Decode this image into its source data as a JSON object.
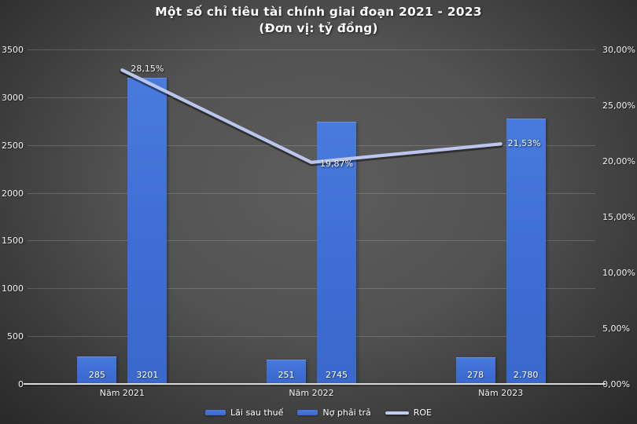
{
  "chart_data": {
    "type": "combo-bar-line",
    "title": "Một số chỉ tiêu tài chính giai đoạn 2021 - 2023",
    "subtitle": "(Đơn vị: tỷ đồng)",
    "categories": [
      "Năm 2021",
      "Năm 2022",
      "Năm 2023"
    ],
    "series": [
      {
        "name": "Lãi sau thuế",
        "type": "bar",
        "axis": "left",
        "values": [
          285,
          251,
          278
        ],
        "labels": [
          "285",
          "251",
          "278"
        ],
        "color": "#3e6ed4"
      },
      {
        "name": "Nợ phải trả",
        "type": "bar",
        "axis": "left",
        "values": [
          3201,
          2745,
          2780
        ],
        "labels": [
          "3201",
          "2745",
          "2.780"
        ],
        "color": "#3e6ed4"
      },
      {
        "name": "ROE",
        "type": "line",
        "axis": "right",
        "values": [
          28.15,
          19.87,
          21.53
        ],
        "labels": [
          "28,15%",
          "19,87%",
          "21,53%"
        ],
        "color": "#bcc6ec"
      }
    ],
    "left_axis": {
      "min": 0,
      "max": 3500,
      "step": 500,
      "ticks": [
        "0",
        "500",
        "1000",
        "1500",
        "2000",
        "2500",
        "3000",
        "3500"
      ]
    },
    "right_axis": {
      "min": 0,
      "max": 30,
      "step": 5,
      "ticks": [
        "0,00%",
        "5,00%",
        "10,00%",
        "15,00%",
        "20,00%",
        "25,00%",
        "30,00%"
      ]
    },
    "grid": true,
    "legend_position": "bottom"
  }
}
